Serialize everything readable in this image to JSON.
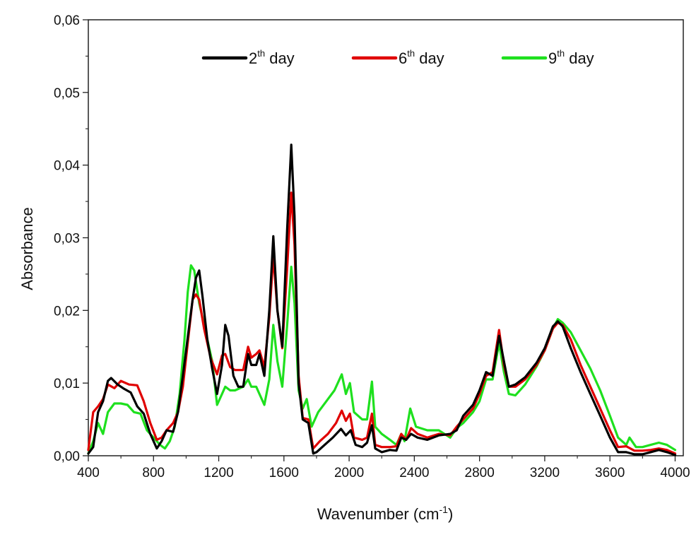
{
  "chart_data": {
    "type": "line",
    "xlabel": {
      "text": "Wavenumber (cm",
      "sup": "-1",
      "suffix": ")"
    },
    "ylabel": "Absorbance",
    "xlim": [
      400,
      4050
    ],
    "ylim": [
      0,
      0.06
    ],
    "x_ticks": [
      "400",
      "800",
      "1200",
      "1600",
      "2000",
      "2400",
      "2800",
      "3200",
      "3600",
      "4000"
    ],
    "x_tick_values": [
      400,
      800,
      1200,
      1600,
      2000,
      2400,
      2800,
      3200,
      3600,
      4000
    ],
    "y_ticks": [
      "0,00",
      "0,01",
      "0,02",
      "0,03",
      "0,04",
      "0,05",
      "0,06"
    ],
    "y_tick_values": [
      0,
      0.01,
      0.02,
      0.03,
      0.04,
      0.05,
      0.06
    ],
    "legend_position": "top",
    "grid": false,
    "series": [
      {
        "name": "2th day",
        "name_parts": {
          "base": "2",
          "sup": "th",
          "suffix": " day"
        },
        "color": "#000000",
        "points": [
          [
            400,
            0.0003
          ],
          [
            430,
            0.0012
          ],
          [
            460,
            0.006
          ],
          [
            490,
            0.0075
          ],
          [
            520,
            0.0103
          ],
          [
            540,
            0.0107
          ],
          [
            580,
            0.0098
          ],
          [
            620,
            0.0092
          ],
          [
            660,
            0.0087
          ],
          [
            700,
            0.0068
          ],
          [
            740,
            0.0058
          ],
          [
            780,
            0.003
          ],
          [
            820,
            0.001
          ],
          [
            850,
            0.002
          ],
          [
            880,
            0.0035
          ],
          [
            920,
            0.0033
          ],
          [
            950,
            0.006
          ],
          [
            980,
            0.011
          ],
          [
            1010,
            0.0163
          ],
          [
            1040,
            0.0215
          ],
          [
            1060,
            0.0245
          ],
          [
            1080,
            0.0255
          ],
          [
            1100,
            0.022
          ],
          [
            1130,
            0.016
          ],
          [
            1160,
            0.012
          ],
          [
            1190,
            0.0085
          ],
          [
            1220,
            0.0125
          ],
          [
            1240,
            0.018
          ],
          [
            1260,
            0.0165
          ],
          [
            1290,
            0.011
          ],
          [
            1320,
            0.0095
          ],
          [
            1350,
            0.0095
          ],
          [
            1380,
            0.014
          ],
          [
            1400,
            0.0125
          ],
          [
            1430,
            0.0125
          ],
          [
            1450,
            0.014
          ],
          [
            1480,
            0.011
          ],
          [
            1510,
            0.02
          ],
          [
            1535,
            0.0302
          ],
          [
            1560,
            0.02
          ],
          [
            1590,
            0.015
          ],
          [
            1620,
            0.0312
          ],
          [
            1645,
            0.0428
          ],
          [
            1665,
            0.033
          ],
          [
            1690,
            0.01
          ],
          [
            1715,
            0.005
          ],
          [
            1750,
            0.0045
          ],
          [
            1780,
            0.0003
          ],
          [
            1800,
            0.0005
          ],
          [
            1850,
            0.0015
          ],
          [
            1900,
            0.0025
          ],
          [
            1950,
            0.0037
          ],
          [
            1980,
            0.0028
          ],
          [
            2010,
            0.0035
          ],
          [
            2040,
            0.0015
          ],
          [
            2080,
            0.0012
          ],
          [
            2110,
            0.0018
          ],
          [
            2140,
            0.0042
          ],
          [
            2160,
            0.001
          ],
          [
            2200,
            0.0005
          ],
          [
            2250,
            0.0008
          ],
          [
            2290,
            0.0007
          ],
          [
            2320,
            0.0025
          ],
          [
            2350,
            0.0022
          ],
          [
            2380,
            0.003
          ],
          [
            2420,
            0.0025
          ],
          [
            2480,
            0.0022
          ],
          [
            2550,
            0.0028
          ],
          [
            2620,
            0.003
          ],
          [
            2660,
            0.0035
          ],
          [
            2700,
            0.0055
          ],
          [
            2760,
            0.007
          ],
          [
            2800,
            0.009
          ],
          [
            2840,
            0.0115
          ],
          [
            2880,
            0.011
          ],
          [
            2920,
            0.0165
          ],
          [
            2950,
            0.013
          ],
          [
            2980,
            0.0095
          ],
          [
            3020,
            0.0098
          ],
          [
            3080,
            0.0108
          ],
          [
            3150,
            0.0128
          ],
          [
            3200,
            0.0148
          ],
          [
            3250,
            0.0178
          ],
          [
            3280,
            0.0185
          ],
          [
            3310,
            0.0178
          ],
          [
            3360,
            0.0148
          ],
          [
            3420,
            0.0115
          ],
          [
            3480,
            0.0085
          ],
          [
            3540,
            0.0055
          ],
          [
            3600,
            0.0025
          ],
          [
            3650,
            0.0005
          ],
          [
            3700,
            0.0005
          ],
          [
            3750,
            0.0002
          ],
          [
            3800,
            0.0002
          ],
          [
            3850,
            0.0005
          ],
          [
            3900,
            0.0008
          ],
          [
            3950,
            0.0005
          ],
          [
            4000,
            0.0001
          ]
        ]
      },
      {
        "name": "6th day",
        "name_parts": {
          "base": "6",
          "sup": "th",
          "suffix": " day"
        },
        "color": "#e00000",
        "points": [
          [
            400,
            0.0008
          ],
          [
            430,
            0.006
          ],
          [
            460,
            0.0068
          ],
          [
            490,
            0.0078
          ],
          [
            520,
            0.0098
          ],
          [
            560,
            0.0093
          ],
          [
            600,
            0.0103
          ],
          [
            650,
            0.0098
          ],
          [
            700,
            0.0097
          ],
          [
            740,
            0.0075
          ],
          [
            780,
            0.0045
          ],
          [
            820,
            0.0022
          ],
          [
            850,
            0.0025
          ],
          [
            880,
            0.0035
          ],
          [
            920,
            0.0045
          ],
          [
            950,
            0.006
          ],
          [
            980,
            0.0095
          ],
          [
            1010,
            0.0155
          ],
          [
            1040,
            0.0215
          ],
          [
            1060,
            0.0222
          ],
          [
            1080,
            0.0215
          ],
          [
            1110,
            0.0175
          ],
          [
            1150,
            0.0135
          ],
          [
            1190,
            0.0112
          ],
          [
            1220,
            0.0138
          ],
          [
            1240,
            0.014
          ],
          [
            1270,
            0.0122
          ],
          [
            1300,
            0.0118
          ],
          [
            1350,
            0.0118
          ],
          [
            1380,
            0.015
          ],
          [
            1400,
            0.0135
          ],
          [
            1430,
            0.014
          ],
          [
            1450,
            0.0145
          ],
          [
            1480,
            0.0122
          ],
          [
            1510,
            0.019
          ],
          [
            1535,
            0.0275
          ],
          [
            1560,
            0.02
          ],
          [
            1590,
            0.0148
          ],
          [
            1620,
            0.0258
          ],
          [
            1645,
            0.0362
          ],
          [
            1665,
            0.029
          ],
          [
            1690,
            0.011
          ],
          [
            1715,
            0.0052
          ],
          [
            1750,
            0.005
          ],
          [
            1780,
            0.001
          ],
          [
            1820,
            0.002
          ],
          [
            1870,
            0.003
          ],
          [
            1920,
            0.0045
          ],
          [
            1955,
            0.0062
          ],
          [
            1980,
            0.0048
          ],
          [
            2005,
            0.0058
          ],
          [
            2030,
            0.0025
          ],
          [
            2080,
            0.0022
          ],
          [
            2110,
            0.0025
          ],
          [
            2140,
            0.0058
          ],
          [
            2160,
            0.0015
          ],
          [
            2200,
            0.0012
          ],
          [
            2250,
            0.0012
          ],
          [
            2290,
            0.0013
          ],
          [
            2320,
            0.003
          ],
          [
            2350,
            0.0022
          ],
          [
            2380,
            0.0038
          ],
          [
            2420,
            0.003
          ],
          [
            2480,
            0.0025
          ],
          [
            2550,
            0.003
          ],
          [
            2620,
            0.0028
          ],
          [
            2660,
            0.004
          ],
          [
            2700,
            0.005
          ],
          [
            2760,
            0.0065
          ],
          [
            2800,
            0.0085
          ],
          [
            2840,
            0.011
          ],
          [
            2880,
            0.0115
          ],
          [
            2920,
            0.0173
          ],
          [
            2950,
            0.0125
          ],
          [
            2980,
            0.0095
          ],
          [
            3020,
            0.0095
          ],
          [
            3080,
            0.0105
          ],
          [
            3150,
            0.0125
          ],
          [
            3200,
            0.0145
          ],
          [
            3250,
            0.0175
          ],
          [
            3280,
            0.0183
          ],
          [
            3310,
            0.018
          ],
          [
            3360,
            0.016
          ],
          [
            3420,
            0.0125
          ],
          [
            3480,
            0.0095
          ],
          [
            3540,
            0.0065
          ],
          [
            3600,
            0.0035
          ],
          [
            3650,
            0.0012
          ],
          [
            3700,
            0.0013
          ],
          [
            3750,
            0.0007
          ],
          [
            3800,
            0.0007
          ],
          [
            3850,
            0.0008
          ],
          [
            3900,
            0.001
          ],
          [
            3950,
            0.0008
          ],
          [
            4000,
            0.0003
          ]
        ]
      },
      {
        "name": "9th day",
        "name_parts": {
          "base": "9",
          "sup": "th",
          "suffix": " day"
        },
        "color": "#1ee01e",
        "points": [
          [
            400,
            0.0003
          ],
          [
            430,
            0.002
          ],
          [
            460,
            0.0045
          ],
          [
            490,
            0.003
          ],
          [
            520,
            0.006
          ],
          [
            560,
            0.0072
          ],
          [
            600,
            0.0072
          ],
          [
            640,
            0.007
          ],
          [
            680,
            0.006
          ],
          [
            720,
            0.0058
          ],
          [
            760,
            0.0035
          ],
          [
            800,
            0.0025
          ],
          [
            840,
            0.0015
          ],
          [
            870,
            0.001
          ],
          [
            900,
            0.002
          ],
          [
            930,
            0.004
          ],
          [
            960,
            0.0085
          ],
          [
            990,
            0.016
          ],
          [
            1010,
            0.0225
          ],
          [
            1030,
            0.0262
          ],
          [
            1050,
            0.0255
          ],
          [
            1080,
            0.021
          ],
          [
            1120,
            0.017
          ],
          [
            1160,
            0.013
          ],
          [
            1190,
            0.007
          ],
          [
            1220,
            0.0085
          ],
          [
            1240,
            0.0095
          ],
          [
            1270,
            0.009
          ],
          [
            1300,
            0.009
          ],
          [
            1350,
            0.0095
          ],
          [
            1380,
            0.0105
          ],
          [
            1400,
            0.0095
          ],
          [
            1430,
            0.0095
          ],
          [
            1450,
            0.0085
          ],
          [
            1480,
            0.007
          ],
          [
            1510,
            0.0105
          ],
          [
            1535,
            0.018
          ],
          [
            1560,
            0.013
          ],
          [
            1590,
            0.0095
          ],
          [
            1620,
            0.018
          ],
          [
            1645,
            0.026
          ],
          [
            1665,
            0.021
          ],
          [
            1690,
            0.009
          ],
          [
            1715,
            0.0065
          ],
          [
            1740,
            0.0078
          ],
          [
            1770,
            0.004
          ],
          [
            1810,
            0.006
          ],
          [
            1860,
            0.0075
          ],
          [
            1910,
            0.009
          ],
          [
            1955,
            0.0112
          ],
          [
            1980,
            0.0085
          ],
          [
            2005,
            0.01
          ],
          [
            2030,
            0.006
          ],
          [
            2080,
            0.005
          ],
          [
            2110,
            0.005
          ],
          [
            2140,
            0.0102
          ],
          [
            2160,
            0.004
          ],
          [
            2200,
            0.003
          ],
          [
            2250,
            0.0022
          ],
          [
            2290,
            0.0015
          ],
          [
            2320,
            0.003
          ],
          [
            2340,
            0.002
          ],
          [
            2375,
            0.0065
          ],
          [
            2410,
            0.004
          ],
          [
            2480,
            0.0035
          ],
          [
            2550,
            0.0035
          ],
          [
            2620,
            0.0025
          ],
          [
            2660,
            0.0038
          ],
          [
            2700,
            0.0045
          ],
          [
            2760,
            0.006
          ],
          [
            2800,
            0.0075
          ],
          [
            2840,
            0.0105
          ],
          [
            2880,
            0.0105
          ],
          [
            2920,
            0.0155
          ],
          [
            2950,
            0.0115
          ],
          [
            2980,
            0.0085
          ],
          [
            3020,
            0.0083
          ],
          [
            3080,
            0.0098
          ],
          [
            3150,
            0.0123
          ],
          [
            3200,
            0.0145
          ],
          [
            3250,
            0.0175
          ],
          [
            3280,
            0.0188
          ],
          [
            3310,
            0.0183
          ],
          [
            3360,
            0.017
          ],
          [
            3420,
            0.0145
          ],
          [
            3480,
            0.012
          ],
          [
            3540,
            0.009
          ],
          [
            3600,
            0.0055
          ],
          [
            3650,
            0.0025
          ],
          [
            3700,
            0.0015
          ],
          [
            3720,
            0.0025
          ],
          [
            3760,
            0.0012
          ],
          [
            3800,
            0.0012
          ],
          [
            3850,
            0.0015
          ],
          [
            3900,
            0.0018
          ],
          [
            3950,
            0.0015
          ],
          [
            4000,
            0.0008
          ]
        ]
      }
    ]
  }
}
